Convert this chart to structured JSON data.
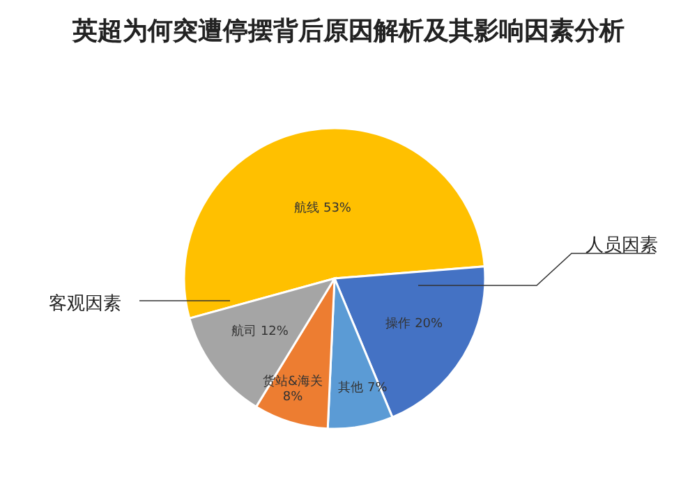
{
  "chart_data": {
    "type": "pie",
    "title": "英超为何突遭停摆背后原因解析及其影响因素分析",
    "categories": [
      "航线",
      "操作",
      "其他",
      "货站&海关",
      "航司"
    ],
    "values": [
      53,
      20,
      7,
      8,
      12
    ],
    "colors": [
      "#ffc000",
      "#4472c4",
      "#5b9bd5",
      "#ed7d31",
      "#a5a5a5"
    ],
    "value_labels": [
      "53%",
      "20%",
      "7%",
      "8%",
      "12%"
    ],
    "annotations": [
      "客观因素",
      "人员因素"
    ]
  }
}
